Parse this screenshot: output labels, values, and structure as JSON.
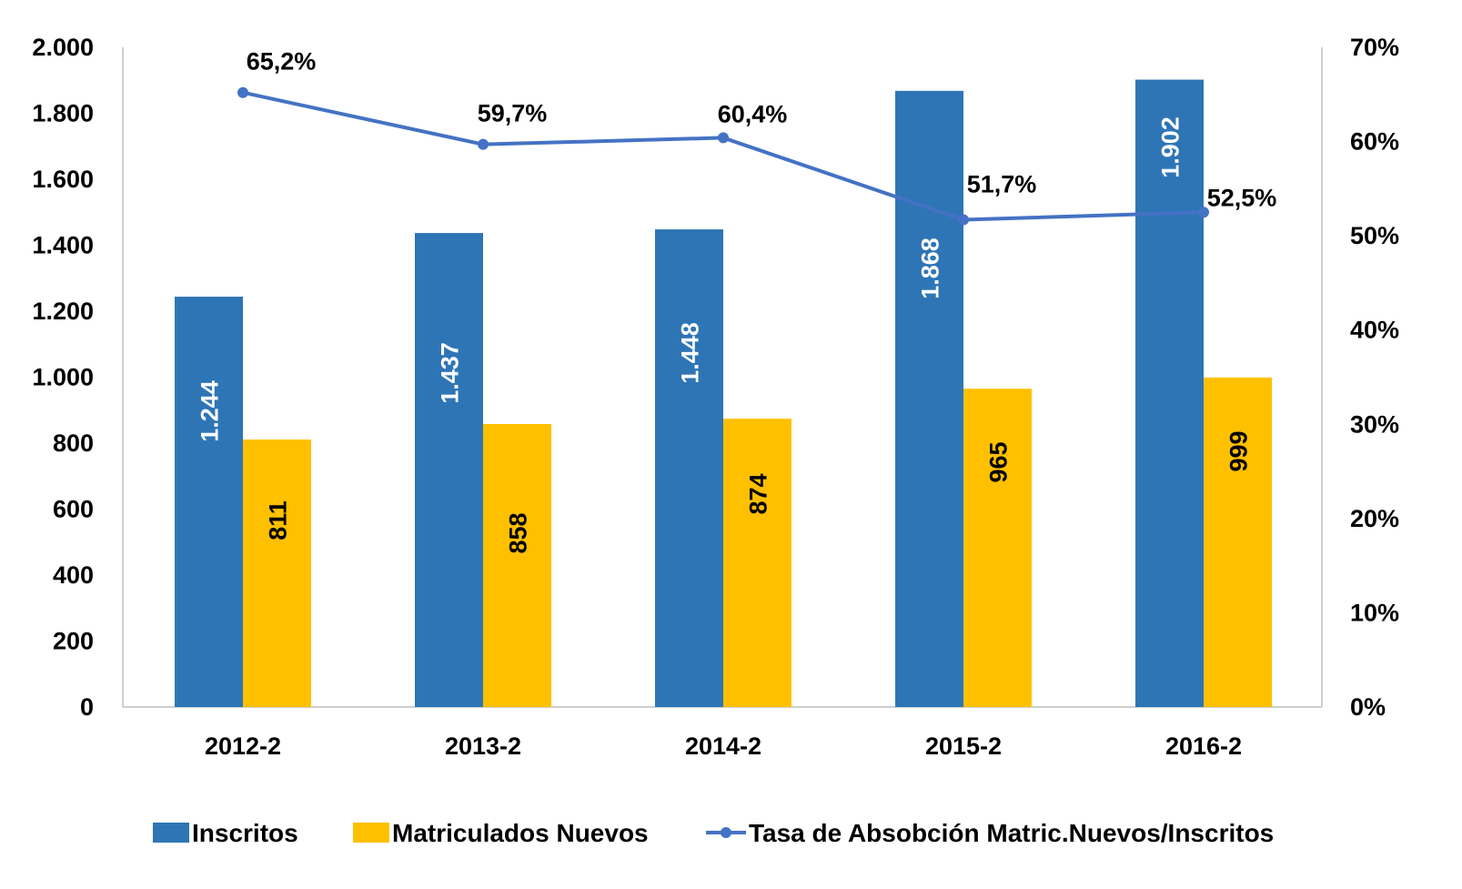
{
  "chart_data": {
    "type": "bar",
    "categories": [
      "2012-2",
      "2013-2",
      "2014-2",
      "2015-2",
      "2016-2"
    ],
    "series": [
      {
        "name": "Inscritos",
        "type": "bar",
        "axis": "left",
        "color": "#2E75B6",
        "values": [
          1244,
          1437,
          1448,
          1868,
          1902
        ],
        "labels": [
          "1.244",
          "1.437",
          "1.448",
          "1.868",
          "1.902"
        ]
      },
      {
        "name": "Matriculados Nuevos",
        "type": "bar",
        "axis": "left",
        "color": "#FFC000",
        "values": [
          811,
          858,
          874,
          965,
          999
        ],
        "labels": [
          "811",
          "858",
          "874",
          "965",
          "999"
        ]
      },
      {
        "name": "Tasa de Absobción Matric.Nuevos/Inscritos",
        "type": "line",
        "axis": "right",
        "color": "#4472C4",
        "values": [
          65.2,
          59.7,
          60.4,
          51.7,
          52.5
        ],
        "labels": [
          "65,2%",
          "59,7%",
          "60,4%",
          "51,7%",
          "52,5%"
        ]
      }
    ],
    "y_left": {
      "range": [
        0,
        2000
      ],
      "tick_values": [
        0,
        200,
        400,
        600,
        800,
        1000,
        1200,
        1400,
        1600,
        1800,
        2000
      ],
      "tick_labels": [
        "0",
        "200",
        "400",
        "600",
        "800",
        "1.000",
        "1.200",
        "1.400",
        "1.600",
        "1.800",
        "2.000"
      ]
    },
    "y_right": {
      "range": [
        0,
        70
      ],
      "tick_values": [
        0,
        10,
        20,
        30,
        40,
        50,
        60,
        70
      ],
      "tick_labels": [
        "0%",
        "10%",
        "20%",
        "30%",
        "40%",
        "50%",
        "60%",
        "70%"
      ]
    },
    "grid": false,
    "legend_position": "bottom"
  }
}
